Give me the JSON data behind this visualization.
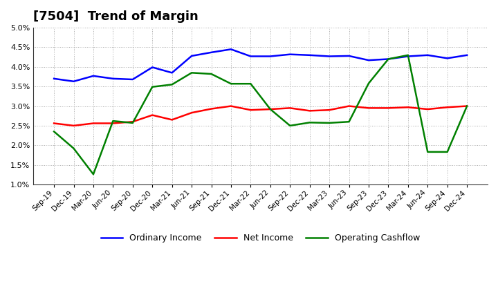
{
  "title": "[7504]  Trend of Margin",
  "x_labels": [
    "Sep-19",
    "Dec-19",
    "Mar-20",
    "Jun-20",
    "Sep-20",
    "Dec-20",
    "Mar-21",
    "Jun-21",
    "Sep-21",
    "Dec-21",
    "Mar-22",
    "Jun-22",
    "Sep-22",
    "Dec-22",
    "Mar-23",
    "Jun-23",
    "Sep-23",
    "Dec-23",
    "Mar-24",
    "Jun-24",
    "Sep-24",
    "Dec-24"
  ],
  "ordinary_income": [
    3.7,
    3.63,
    3.77,
    3.7,
    3.68,
    3.99,
    3.85,
    4.28,
    4.37,
    4.45,
    4.27,
    4.27,
    4.32,
    4.3,
    4.27,
    4.28,
    4.17,
    4.2,
    4.27,
    4.3,
    4.22,
    4.3
  ],
  "net_income": [
    2.56,
    2.5,
    2.56,
    2.56,
    2.6,
    2.77,
    2.65,
    2.83,
    2.93,
    3.0,
    2.9,
    2.92,
    2.95,
    2.88,
    2.9,
    3.0,
    2.95,
    2.95,
    2.97,
    2.92,
    2.97,
    3.0
  ],
  "operating_cashflow": [
    2.35,
    1.92,
    1.26,
    2.62,
    2.57,
    3.49,
    3.55,
    3.85,
    3.82,
    3.57,
    3.57,
    2.92,
    2.5,
    2.58,
    2.57,
    2.6,
    3.58,
    4.2,
    4.3,
    1.83,
    1.83,
    3.0
  ],
  "ordinary_income_color": "#0000ff",
  "net_income_color": "#ff0000",
  "operating_cashflow_color": "#008000",
  "ylim": [
    1.0,
    5.0
  ],
  "yticks": [
    1.0,
    1.5,
    2.0,
    2.5,
    3.0,
    3.5,
    4.0,
    4.5,
    5.0
  ],
  "background_color": "#ffffff",
  "grid_color": "#aaaaaa",
  "title_fontsize": 13,
  "legend_labels": [
    "Ordinary Income",
    "Net Income",
    "Operating Cashflow"
  ]
}
